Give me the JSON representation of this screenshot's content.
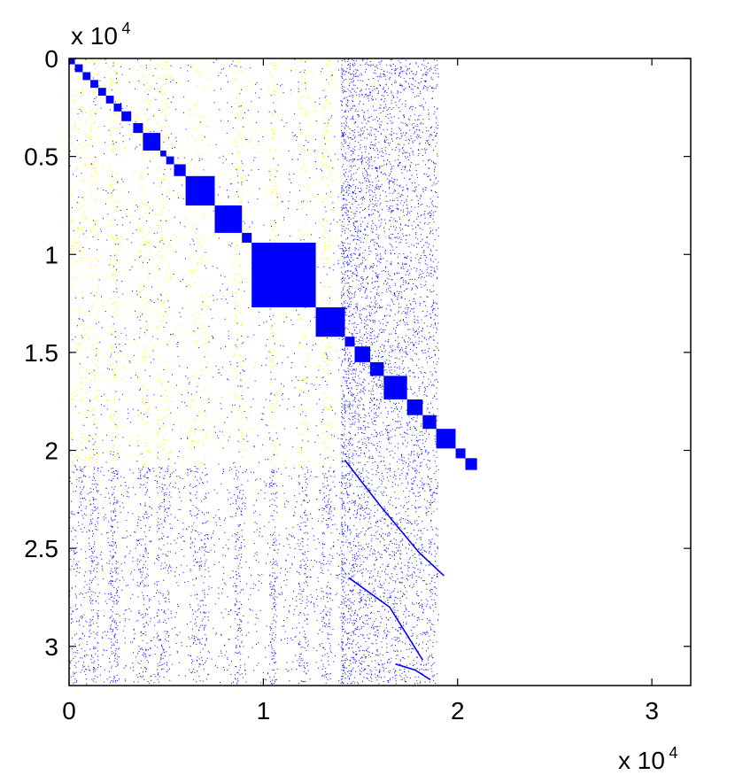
{
  "chart_data": {
    "type": "scatter",
    "title": "",
    "xlabel": "",
    "ylabel": "",
    "xlim": [
      0,
      32000
    ],
    "ylim": [
      0,
      32000
    ],
    "y_axis_inverted": true,
    "x_ticks": [
      {
        "value": 0,
        "label": "0"
      },
      {
        "value": 10000,
        "label": "1"
      },
      {
        "value": 20000,
        "label": "2"
      },
      {
        "value": 30000,
        "label": "3"
      }
    ],
    "y_ticks": [
      {
        "value": 0,
        "label": "0"
      },
      {
        "value": 5000,
        "label": "0.5"
      },
      {
        "value": 10000,
        "label": "1"
      },
      {
        "value": 15000,
        "label": "1.5"
      },
      {
        "value": 20000,
        "label": "2"
      },
      {
        "value": 25000,
        "label": "2.5"
      },
      {
        "value": 30000,
        "label": "3"
      }
    ],
    "x_multiplier": {
      "base": "x 10",
      "exponent": "4"
    },
    "y_multiplier": {
      "base": "x 10",
      "exponent": "4"
    },
    "grid": false,
    "series_colors": {
      "primary": "#0000ff",
      "secondary": "#ffff00"
    },
    "diagonal_blocks": [
      [
        0,
        300
      ],
      [
        300,
        700
      ],
      [
        700,
        1100
      ],
      [
        1100,
        1500
      ],
      [
        1500,
        1900
      ],
      [
        1900,
        2300
      ],
      [
        2300,
        2700
      ],
      [
        2700,
        3200
      ],
      [
        3300,
        3800
      ],
      [
        3800,
        4700
      ],
      [
        4700,
        5000
      ],
      [
        5000,
        5400
      ],
      [
        5400,
        6000
      ],
      [
        6000,
        7500
      ],
      [
        7500,
        8900
      ],
      [
        8900,
        9400
      ],
      [
        9400,
        12700
      ],
      [
        12700,
        14200
      ],
      [
        14200,
        14700
      ],
      [
        14700,
        15500
      ],
      [
        15500,
        16200
      ],
      [
        16200,
        17400
      ],
      [
        17400,
        18200
      ],
      [
        18200,
        18900
      ],
      [
        18900,
        19900
      ],
      [
        19900,
        20400
      ],
      [
        20400,
        21000
      ]
    ],
    "column_bands": [
      [
        0,
        900
      ],
      [
        1000,
        1500
      ],
      [
        2100,
        2500
      ],
      [
        3500,
        4200
      ],
      [
        4500,
        5200
      ],
      [
        6200,
        7200
      ],
      [
        8500,
        8900
      ],
      [
        10300,
        10700
      ],
      [
        11800,
        12300
      ],
      [
        13000,
        13500
      ]
    ],
    "tail_curves": [
      {
        "x": [
          14200,
          16000,
          18000,
          19300
        ],
        "y": [
          20500,
          22800,
          25200,
          26400
        ]
      },
      {
        "x": [
          14400,
          16500,
          18200
        ],
        "y": [
          26500,
          28000,
          30700
        ]
      },
      {
        "x": [
          16800,
          17800,
          18600
        ],
        "y": [
          30900,
          31200,
          31700
        ]
      }
    ]
  }
}
